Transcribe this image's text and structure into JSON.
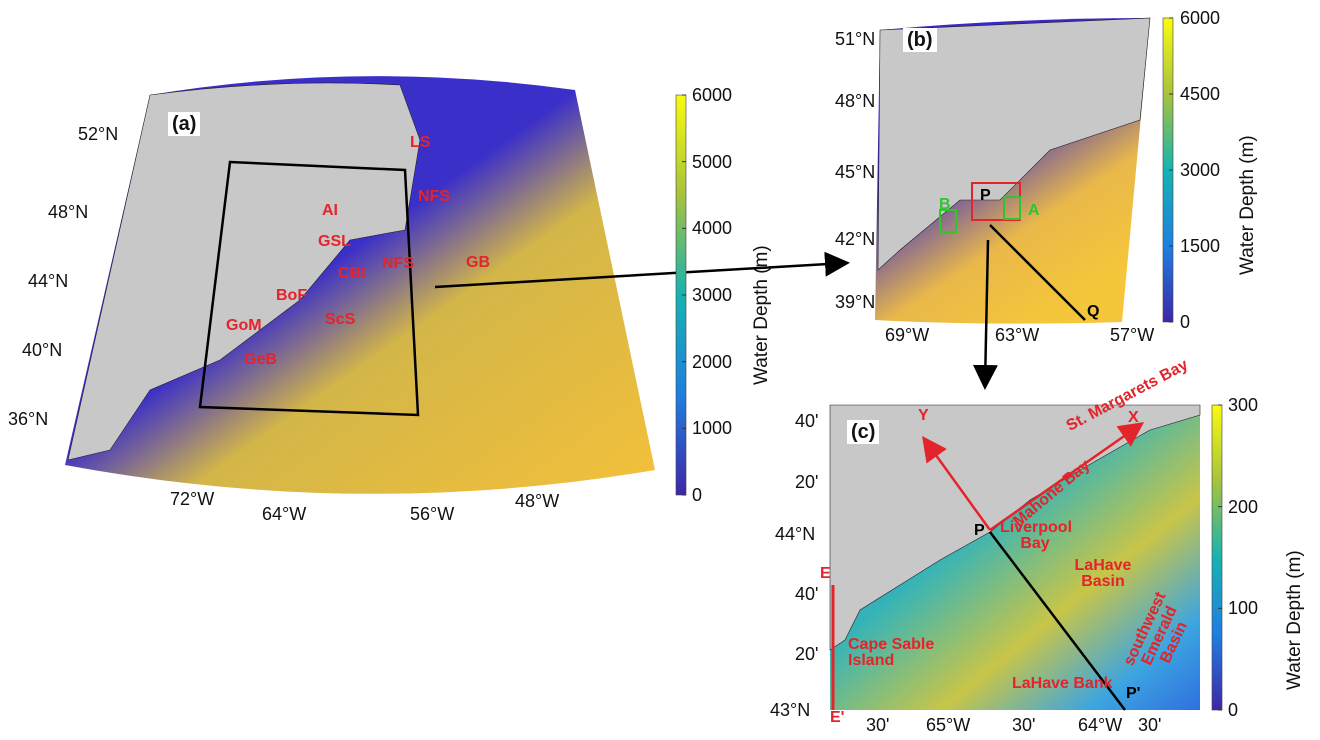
{
  "panels": [
    {
      "label": "(a)",
      "lat_labels": [
        "52°N",
        "48°N",
        "44°N",
        "40°N",
        "36°N"
      ],
      "lon_labels": [
        "72°W",
        "64°W",
        "56°W",
        "48°W"
      ],
      "places": [
        "LS",
        "NFS",
        "AI",
        "GSL",
        "CBI",
        "NFS",
        "GB",
        "BoF",
        "GoM",
        "ScS",
        "GeB"
      ],
      "colorbar": {
        "title": "Water Depth (m)",
        "lim": [
          0,
          6000
        ],
        "ticks": [
          0,
          1000,
          2000,
          3000,
          4000,
          5000,
          6000
        ]
      }
    },
    {
      "label": "(b)",
      "lat_labels": [
        "51°N",
        "48°N",
        "45°N",
        "42°N",
        "39°N"
      ],
      "lon_labels": [
        "69°W",
        "63°W",
        "57°W"
      ],
      "places": [
        "P",
        "A",
        "B",
        "Q"
      ],
      "colorbar": {
        "title": "Water Depth (m)",
        "lim": [
          0,
          6000
        ],
        "ticks": [
          0,
          1500,
          3000,
          4500,
          6000
        ]
      }
    },
    {
      "label": "(c)",
      "lat_labels": [
        "40'",
        "20'",
        "44°N",
        "40'",
        "20'",
        "43°N"
      ],
      "lon_labels": [
        "30'",
        "65°W",
        "30'",
        "64°W",
        "30'"
      ],
      "places": [
        "Y",
        "X",
        "St. Margarets Bay",
        "Mahone Bay",
        "Liverpool Bay",
        "P",
        "LaHave Basin",
        "southwest Emerald Basin",
        "E",
        "E'",
        "Cape Sable Island",
        "LaHave Bank",
        "P'"
      ],
      "colorbar": {
        "title": "Water Depth (m)",
        "lim": [
          0,
          300
        ],
        "ticks": [
          0,
          100,
          200,
          300
        ]
      }
    }
  ]
}
